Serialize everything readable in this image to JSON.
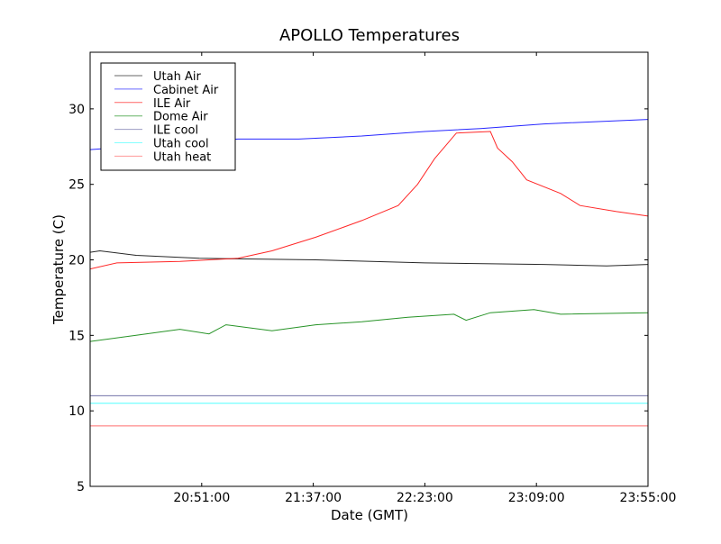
{
  "chart_data": {
    "type": "line",
    "title": "APOLLO Temperatures",
    "xlabel": "Date (GMT)",
    "ylabel": "Temperature (C)",
    "xlim": [
      "20:05",
      "23:55"
    ],
    "ylim": [
      5,
      33.75
    ],
    "xticks": [
      "20:51:00",
      "21:37:00",
      "22:23:00",
      "23:09:00",
      "23:55:00"
    ],
    "yticks": [
      5,
      10,
      15,
      20,
      25,
      30
    ],
    "grid": false,
    "legend_position": "top-left",
    "series": [
      {
        "name": "Utah Air",
        "color": "#000000",
        "points": [
          [
            "20:05",
            20.5
          ],
          [
            "20:09",
            20.6
          ],
          [
            "20:24",
            20.3
          ],
          [
            "20:50",
            20.1
          ],
          [
            "21:38",
            20.0
          ],
          [
            "22:23",
            19.8
          ],
          [
            "23:12",
            19.7
          ],
          [
            "23:38",
            19.6
          ],
          [
            "23:55",
            19.7
          ]
        ]
      },
      {
        "name": "Cabinet Air",
        "color": "#0000ff",
        "points": [
          [
            "20:05",
            27.3
          ],
          [
            "21:06",
            28.0
          ],
          [
            "21:31",
            28.0
          ],
          [
            "21:57",
            28.2
          ],
          [
            "22:23",
            28.5
          ],
          [
            "22:46",
            28.7
          ],
          [
            "23:12",
            29.0
          ],
          [
            "23:55",
            29.3
          ]
        ]
      },
      {
        "name": "ILE Air",
        "color": "#ff0000",
        "points": [
          [
            "20:05",
            19.4
          ],
          [
            "20:16",
            19.8
          ],
          [
            "20:42",
            19.9
          ],
          [
            "21:06",
            20.1
          ],
          [
            "21:20",
            20.6
          ],
          [
            "21:38",
            21.5
          ],
          [
            "21:57",
            22.6
          ],
          [
            "22:12",
            23.6
          ],
          [
            "22:20",
            25.0
          ],
          [
            "22:27",
            26.7
          ],
          [
            "22:36",
            28.4
          ],
          [
            "22:50",
            28.5
          ],
          [
            "22:53",
            27.4
          ],
          [
            "22:59",
            26.5
          ],
          [
            "23:05",
            25.3
          ],
          [
            "23:19",
            24.4
          ],
          [
            "23:27",
            23.6
          ],
          [
            "23:42",
            23.2
          ],
          [
            "23:55",
            22.9
          ]
        ]
      },
      {
        "name": "Dome Air",
        "color": "#008000",
        "points": [
          [
            "20:05",
            14.6
          ],
          [
            "20:24",
            15.0
          ],
          [
            "20:42",
            15.4
          ],
          [
            "20:54",
            15.1
          ],
          [
            "21:01",
            15.7
          ],
          [
            "21:20",
            15.3
          ],
          [
            "21:38",
            15.7
          ],
          [
            "21:57",
            15.9
          ],
          [
            "22:16",
            16.2
          ],
          [
            "22:35",
            16.4
          ],
          [
            "22:40",
            16.0
          ],
          [
            "22:50",
            16.5
          ],
          [
            "23:08",
            16.7
          ],
          [
            "23:19",
            16.4
          ],
          [
            "23:55",
            16.5
          ]
        ]
      },
      {
        "name": "ILE cool",
        "color": "#5a5a9a",
        "points": [
          [
            "20:05",
            11.0
          ],
          [
            "23:55",
            11.0
          ]
        ]
      },
      {
        "name": "Utah cool",
        "color": "#33ffff",
        "points": [
          [
            "20:05",
            10.5
          ],
          [
            "23:55",
            10.5
          ]
        ]
      },
      {
        "name": "Utah heat",
        "color": "#ff5555",
        "points": [
          [
            "20:05",
            7.7
          ],
          [
            "20:05",
            9.0
          ],
          [
            "23:55",
            9.0
          ]
        ]
      }
    ]
  }
}
